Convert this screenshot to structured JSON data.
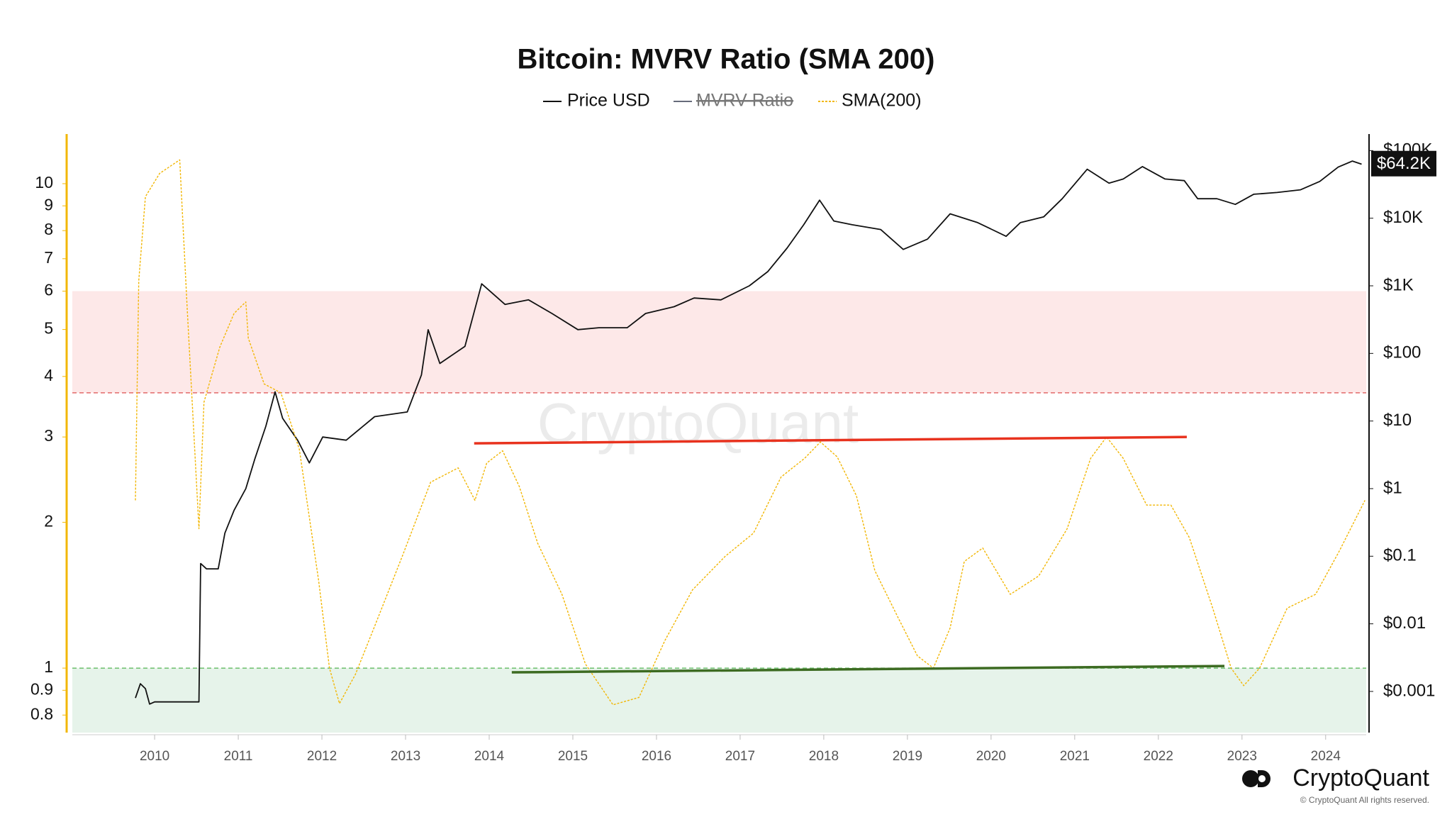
{
  "chart_data": {
    "type": "line",
    "title": "Bitcoin: MVRV Ratio (SMA 200)",
    "watermark": "CryptoQuant",
    "brand": "CryptoQuant",
    "copyright": "© CryptoQuant All rights reserved.",
    "xlim": [
      2009.016,
      2024.485
    ],
    "xticks": [
      2010,
      2011,
      2012,
      2013,
      2014,
      2015,
      2016,
      2017,
      2018,
      2019,
      2020,
      2021,
      2022,
      2023,
      2024
    ],
    "ylim": [
      0.736,
      12.66
    ],
    "log_y": true,
    "yticks": [
      0.8,
      0.9,
      1,
      2,
      3,
      4,
      5,
      6,
      7,
      8,
      9,
      10
    ],
    "y2lim": [
      0.000246,
      175800
    ],
    "log_y2": true,
    "y2ticks": [
      {
        "value": 0.001,
        "label": "$0.001"
      },
      {
        "value": 0.01,
        "label": "$0.01"
      },
      {
        "value": 0.1,
        "label": "$0.1"
      },
      {
        "value": 1,
        "label": "$1"
      },
      {
        "value": 10,
        "label": "$10"
      },
      {
        "value": 100,
        "label": "$100"
      },
      {
        "value": 1000,
        "label": "$1K"
      },
      {
        "value": 10000,
        "label": "$10K"
      },
      {
        "value": 100000,
        "label": "$100K"
      }
    ],
    "current_price": {
      "value": 64200,
      "label": "$64.2K"
    },
    "zones": [
      {
        "from": 3.7,
        "to": 6,
        "color": "#fde8e8",
        "line_color": "#e36a6a",
        "dashed_edge": "from"
      },
      {
        "to": 1,
        "color": "#e6f3ea",
        "line_color": "#6cbf6c",
        "dashed_edge": "to"
      }
    ],
    "trend_lines": [
      {
        "color": "#e8321e",
        "x": [
          2013.82,
          2022.34
        ],
        "values": [
          2.91,
          3.0
        ]
      },
      {
        "color": "#3d6b22",
        "x": [
          2014.27,
          2022.79
        ],
        "values": [
          0.98,
          1.01
        ]
      }
    ],
    "series": [
      {
        "name": "Price USD",
        "color": "#111111",
        "axis": "y2",
        "x": [
          2009.77,
          2009.83,
          2009.89,
          2009.94,
          2010.0,
          2010.53,
          2010.55,
          2010.62,
          2010.76,
          2010.84,
          2010.95,
          2011.09,
          2011.2,
          2011.33,
          2011.44,
          2011.53,
          2011.71,
          2011.85,
          2012.01,
          2012.29,
          2012.63,
          2013.02,
          2013.19,
          2013.27,
          2013.41,
          2013.71,
          2013.91,
          2014.19,
          2014.47,
          2014.75,
          2015.06,
          2015.31,
          2015.65,
          2015.87,
          2016.21,
          2016.45,
          2016.77,
          2017.11,
          2017.33,
          2017.56,
          2017.76,
          2017.95,
          2018.12,
          2018.34,
          2018.68,
          2018.95,
          2019.24,
          2019.51,
          2019.84,
          2020.18,
          2020.35,
          2020.63,
          2020.85,
          2021.15,
          2021.41,
          2021.58,
          2021.81,
          2022.08,
          2022.31,
          2022.47,
          2022.7,
          2022.92,
          2023.14,
          2023.42,
          2023.7,
          2023.93,
          2024.15,
          2024.32,
          2024.43
        ],
        "values": [
          0.0008,
          0.0013,
          0.0011,
          0.00065,
          0.0007,
          0.0007,
          0.078,
          0.065,
          0.065,
          0.22,
          0.48,
          1.0,
          2.8,
          8.4,
          27,
          11,
          5.2,
          2.4,
          5.8,
          5.2,
          11.6,
          13.6,
          48,
          224,
          71,
          127,
          1070,
          530,
          620,
          390,
          225,
          240,
          240,
          390,
          490,
          660,
          620,
          1000,
          1620,
          3600,
          8000,
          18500,
          9100,
          8000,
          6800,
          3450,
          4900,
          11600,
          8600,
          5400,
          8600,
          10500,
          19400,
          53000,
          33000,
          38000,
          58000,
          38000,
          36000,
          19400,
          19400,
          16000,
          22600,
          24000,
          26300,
          35000,
          57000,
          70000,
          63000
        ]
      },
      {
        "name": "MVRV Ratio",
        "color": "#666b7a",
        "hidden": true
      },
      {
        "name": "SMA(200)",
        "color": "#f2b705",
        "axis": "y",
        "x": [
          2009.77,
          2009.81,
          2009.89,
          2010.06,
          2010.3,
          2010.39,
          2010.53,
          2010.59,
          2010.78,
          2010.95,
          2011.09,
          2011.12,
          2011.31,
          2011.51,
          2011.73,
          2011.96,
          2012.09,
          2012.21,
          2012.4,
          2012.63,
          2012.96,
          2013.3,
          2013.63,
          2013.83,
          2013.97,
          2014.16,
          2014.36,
          2014.58,
          2014.87,
          2015.15,
          2015.48,
          2015.79,
          2016.1,
          2016.43,
          2016.82,
          2017.16,
          2017.49,
          2017.77,
          2017.96,
          2018.16,
          2018.39,
          2018.61,
          2018.89,
          2019.12,
          2019.31,
          2019.51,
          2019.68,
          2019.9,
          2020.23,
          2020.57,
          2020.91,
          2021.19,
          2021.38,
          2021.58,
          2021.86,
          2022.15,
          2022.37,
          2022.65,
          2022.87,
          2023.02,
          2023.21,
          2023.54,
          2023.88,
          2024.16,
          2024.47
        ],
        "values": [
          2.22,
          6.3,
          9.4,
          10.5,
          11.2,
          5.5,
          1.94,
          3.54,
          4.6,
          5.4,
          5.7,
          4.8,
          3.86,
          3.7,
          2.83,
          1.52,
          1.0,
          0.845,
          0.97,
          1.22,
          1.7,
          2.42,
          2.59,
          2.22,
          2.65,
          2.81,
          2.37,
          1.81,
          1.42,
          1.02,
          0.84,
          0.87,
          1.14,
          1.45,
          1.7,
          1.9,
          2.48,
          2.71,
          2.93,
          2.73,
          2.27,
          1.59,
          1.27,
          1.06,
          1.0,
          1.21,
          1.66,
          1.77,
          1.42,
          1.55,
          1.94,
          2.71,
          3.0,
          2.71,
          2.17,
          2.17,
          1.86,
          1.33,
          1.0,
          0.92,
          1.0,
          1.33,
          1.42,
          1.74,
          2.22
        ]
      }
    ]
  }
}
